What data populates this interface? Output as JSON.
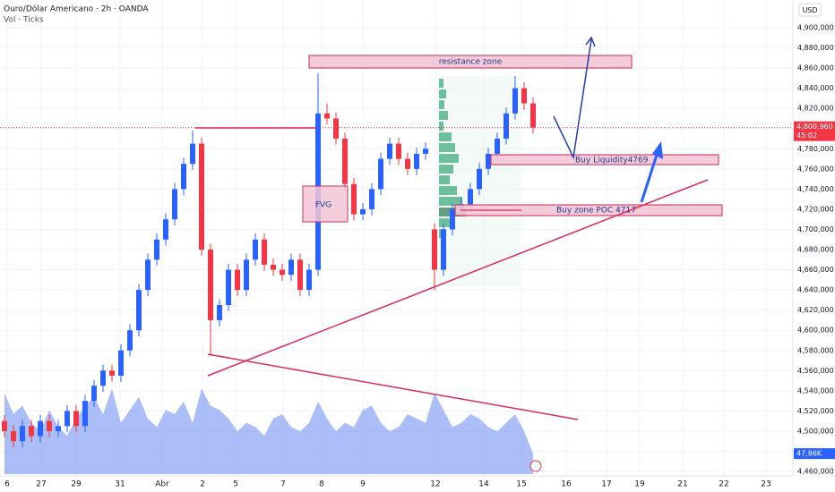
{
  "chart_data": {
    "type": "candlestick",
    "title": "Ouro/Dólar Americano · 2h · OANDA",
    "subtitle": "Vol · Ticks",
    "currency": "USD",
    "up_color": "#2962ff",
    "down_color": "#f23645",
    "volume_color": "#8fa8f5",
    "x": [
      0,
      1,
      2,
      3,
      4,
      5,
      6,
      7,
      8,
      9,
      10,
      11,
      12,
      13,
      14,
      15,
      16,
      17,
      18,
      19,
      20,
      21,
      22,
      23,
      24,
      25,
      26,
      27,
      28,
      29,
      30,
      31,
      32,
      33,
      34,
      35,
      36,
      37,
      38,
      39,
      40,
      41,
      42,
      43,
      44,
      45,
      46,
      47,
      48,
      49,
      50,
      51,
      52,
      53,
      54,
      55,
      56,
      57,
      58,
      59
    ],
    "open": [
      4510000,
      4500000,
      4490000,
      4505000,
      4495000,
      4510000,
      4500000,
      4505000,
      4520000,
      4505000,
      4530000,
      4545000,
      4560000,
      4555000,
      4580000,
      4600000,
      4640000,
      4670000,
      4690000,
      4710000,
      4740000,
      4765000,
      4785000,
      4680000,
      4610000,
      4625000,
      4660000,
      4640000,
      4670000,
      4690000,
      4665000,
      4660000,
      4655000,
      4670000,
      4640000,
      4660000,
      4815000,
      4810000,
      4790000,
      4745000,
      4715000,
      4720000,
      4740000,
      4770000,
      4785000,
      4770000,
      4760000,
      4775000,
      4700000,
      4660000,
      4700000,
      4720000,
      4725000,
      4740000,
      4760000,
      4775000,
      4790000,
      4815000,
      4840000,
      4825000
    ],
    "high": [
      4516000,
      4506000,
      4511000,
      4511000,
      4516000,
      4516000,
      4511000,
      4526000,
      4526000,
      4536000,
      4551000,
      4566000,
      4566000,
      4586000,
      4606000,
      4646000,
      4676000,
      4696000,
      4716000,
      4746000,
      4771000,
      4798000,
      4791000,
      4686000,
      4631000,
      4666000,
      4666000,
      4676000,
      4696000,
      4696000,
      4671000,
      4666000,
      4676000,
      4676000,
      4666000,
      4855000,
      4825000,
      4816000,
      4796000,
      4751000,
      4726000,
      4746000,
      4776000,
      4791000,
      4791000,
      4776000,
      4781000,
      4786000,
      4706000,
      4706000,
      4726000,
      4731000,
      4746000,
      4766000,
      4781000,
      4796000,
      4821000,
      4852000,
      4846000,
      4831000
    ],
    "low": [
      4494000,
      4484000,
      4484000,
      4489000,
      4489000,
      4494000,
      4494000,
      4499000,
      4499000,
      4499000,
      4524000,
      4539000,
      4549000,
      4549000,
      4574000,
      4594000,
      4634000,
      4664000,
      4684000,
      4704000,
      4734000,
      4759000,
      4674000,
      4575000,
      4604000,
      4619000,
      4634000,
      4634000,
      4664000,
      4659000,
      4654000,
      4649000,
      4649000,
      4634000,
      4634000,
      4654000,
      4804000,
      4784000,
      4739000,
      4709000,
      4709000,
      4714000,
      4734000,
      4764000,
      4764000,
      4754000,
      4754000,
      4769000,
      4640000,
      4654000,
      4694000,
      4714000,
      4719000,
      4734000,
      4754000,
      4769000,
      4784000,
      4809000,
      4819000,
      4795000
    ],
    "close": [
      4500000,
      4490000,
      4505000,
      4495000,
      4510000,
      4500000,
      4505000,
      4520000,
      4505000,
      4530000,
      4545000,
      4560000,
      4555000,
      4580000,
      4600000,
      4640000,
      4670000,
      4690000,
      4710000,
      4740000,
      4765000,
      4785000,
      4680000,
      4610000,
      4625000,
      4660000,
      4640000,
      4670000,
      4690000,
      4665000,
      4660000,
      4655000,
      4670000,
      4640000,
      4660000,
      4815000,
      4810000,
      4790000,
      4745000,
      4715000,
      4720000,
      4740000,
      4770000,
      4785000,
      4770000,
      4760000,
      4775000,
      4780000,
      4660000,
      4700000,
      4720000,
      4725000,
      4740000,
      4760000,
      4775000,
      4790000,
      4815000,
      4840000,
      4825000,
      4800960
    ],
    "volume": [
      190000,
      140000,
      160000,
      120000,
      100000,
      150000,
      110000,
      90000,
      130000,
      160000,
      180000,
      140000,
      200000,
      120000,
      150000,
      180000,
      130000,
      110000,
      150000,
      140000,
      170000,
      120000,
      200000,
      160000,
      150000,
      130000,
      100000,
      120000,
      110000,
      90000,
      130000,
      140000,
      110000,
      100000,
      120000,
      170000,
      130000,
      100000,
      120000,
      110000,
      150000,
      160000,
      120000,
      100000,
      110000,
      140000,
      130000,
      120000,
      190000,
      150000,
      110000,
      120000,
      140000,
      130000,
      110000,
      100000,
      120000,
      140000,
      100000,
      47860
    ],
    "volume_lim": [
      0,
      230000
    ],
    "last_price": {
      "value": 4800960,
      "label": "4,800,960"
    },
    "countdown": "45:02",
    "last_volume": {
      "value": 47860,
      "label": "47,86K"
    },
    "xlim": [
      -0.5,
      88
    ],
    "xticks": [
      {
        "value": 0.3,
        "label": "6"
      },
      {
        "value": 4.1,
        "label": "27"
      },
      {
        "value": 8,
        "label": "29"
      },
      {
        "value": 12.9,
        "label": "31"
      },
      {
        "value": 17.6,
        "label": "Abr"
      },
      {
        "value": 22.1,
        "label": "2"
      },
      {
        "value": 25.8,
        "label": "5"
      },
      {
        "value": 31.1,
        "label": "7"
      },
      {
        "value": 35.4,
        "label": "8"
      },
      {
        "value": 40,
        "label": "9"
      },
      {
        "value": 48.1,
        "label": "12"
      },
      {
        "value": 53.5,
        "label": "14"
      },
      {
        "value": 57.7,
        "label": "15"
      },
      {
        "value": 62.7,
        "label": "16"
      },
      {
        "value": 67.2,
        "label": "17"
      },
      {
        "value": 70.9,
        "label": "19"
      },
      {
        "value": 75.7,
        "label": "21"
      },
      {
        "value": 80.3,
        "label": "22"
      },
      {
        "value": 85,
        "label": "23"
      }
    ],
    "ylim": [
      4455600,
      4927500
    ],
    "yticks": [
      {
        "value": 4460000,
        "label": "4,460,000"
      },
      {
        "value": 4480000,
        "label": "4,480,000"
      },
      {
        "value": 4500000,
        "label": "4,500,000"
      },
      {
        "value": 4520000,
        "label": "4,520,000"
      },
      {
        "value": 4540000,
        "label": "4,540,000"
      },
      {
        "value": 4560000,
        "label": "4,560,000"
      },
      {
        "value": 4580000,
        "label": "4,580,000"
      },
      {
        "value": 4600000,
        "label": "4,600,000"
      },
      {
        "value": 4620000,
        "label": "4,620,000"
      },
      {
        "value": 4640000,
        "label": "4,640,000"
      },
      {
        "value": 4660000,
        "label": "4,660,000"
      },
      {
        "value": 4680000,
        "label": "4,680,000"
      },
      {
        "value": 4700000,
        "label": "4,700,000"
      },
      {
        "value": 4720000,
        "label": "4,720,000"
      },
      {
        "value": 4740000,
        "label": "4,740,000"
      },
      {
        "value": 4760000,
        "label": "4,760,000"
      },
      {
        "value": 4780000,
        "label": "4,780,000"
      },
      {
        "value": 4800000,
        "label": "4,800,000"
      },
      {
        "value": 4820000,
        "label": "4,820,000"
      },
      {
        "value": 4840000,
        "label": "4,840,000"
      },
      {
        "value": 4860000,
        "label": "4,860,000"
      },
      {
        "value": 4880000,
        "label": "4,880,000"
      },
      {
        "value": 4900000,
        "label": "4,900,000"
      }
    ],
    "grid": true,
    "annotations": [
      "resistance zone",
      "FVG",
      "Buy Liquidity4769",
      "Buy zone POC 4717"
    ]
  }
}
